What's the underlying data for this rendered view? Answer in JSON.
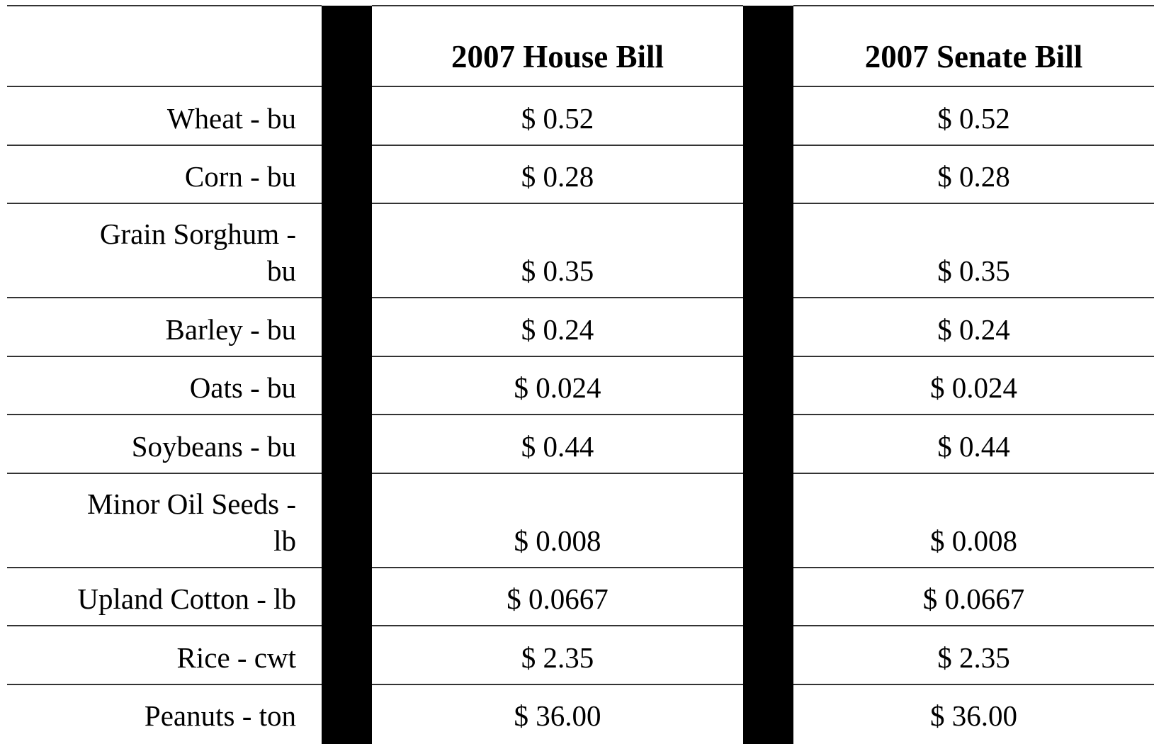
{
  "table": {
    "header": [
      "",
      "2007 House Bill",
      "2007 Senate Bill"
    ],
    "rows": [
      {
        "label": [
          "Wheat - bu"
        ],
        "house": "$ 0.52",
        "senate": "$ 0.52"
      },
      {
        "label": [
          "Corn - bu"
        ],
        "house": "$ 0.28",
        "senate": "$ 0.28"
      },
      {
        "label": [
          "Grain Sorghum -",
          "bu"
        ],
        "house": "$ 0.35",
        "senate": "$ 0.35"
      },
      {
        "label": [
          "Barley - bu"
        ],
        "house": "$ 0.24",
        "senate": "$ 0.24"
      },
      {
        "label": [
          "Oats - bu"
        ],
        "house": "$ 0.024",
        "senate": "$ 0.024"
      },
      {
        "label": [
          "Soybeans - bu"
        ],
        "house": "$ 0.44",
        "senate": "$ 0.44"
      },
      {
        "label": [
          "Minor Oil Seeds -",
          "lb"
        ],
        "house": "$ 0.008",
        "senate": "$ 0.008"
      },
      {
        "label": [
          "Upland Cotton - lb"
        ],
        "house": "$ 0.0667",
        "senate": "$ 0.0667"
      },
      {
        "label": [
          "Rice - cwt"
        ],
        "house": "$ 2.35",
        "senate": "$ 2.35"
      },
      {
        "label": [
          "Peanuts - ton"
        ],
        "house": "$ 36.00",
        "senate": "$ 36.00"
      }
    ]
  }
}
